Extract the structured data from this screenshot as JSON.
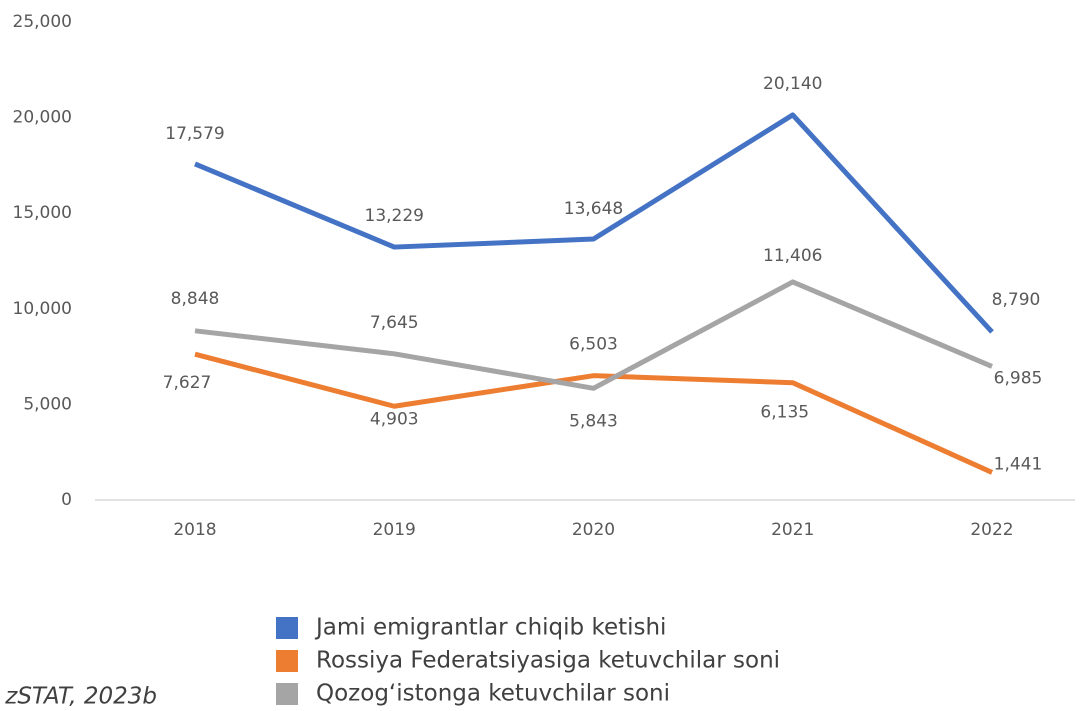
{
  "chart_data": {
    "type": "line",
    "categories": [
      "2018",
      "2019",
      "2020",
      "2021",
      "2022"
    ],
    "series": [
      {
        "name": "Jami emigrantlar chiqib ketishi",
        "color": "#4472c4",
        "values": [
          17579,
          13229,
          13648,
          20140,
          8790
        ],
        "value_labels": [
          "17,579",
          "13,229",
          "13,648",
          "20,140",
          "8,790"
        ]
      },
      {
        "name": "Rossiya Federatsiyasiga ketuvchilar soni",
        "color": "#ed7d31",
        "values": [
          7627,
          4903,
          6503,
          6135,
          1441
        ],
        "value_labels": [
          "7,627",
          "4,903",
          "6,503",
          "6,135",
          "1,441"
        ]
      },
      {
        "name": "Qozog‘istonga ketuvchilar soni",
        "color": "#a5a5a5",
        "values": [
          8848,
          7645,
          5843,
          11406,
          6985
        ],
        "value_labels": [
          "8,848",
          "7,645",
          "5,843",
          "11,406",
          "6,985"
        ]
      }
    ],
    "ylim": [
      0,
      25000
    ],
    "yticks": [
      0,
      {
        "value": 5000,
        "label": "5,000"
      },
      {
        "value": 10000,
        "label": "10,000"
      },
      {
        "value": 15000,
        "label": "15,000"
      },
      {
        "value": 20000,
        "label": "20,000"
      },
      {
        "value": 25000,
        "label": "25,000"
      }
    ],
    "grid": false,
    "source": "zSTAT, 2023b"
  }
}
